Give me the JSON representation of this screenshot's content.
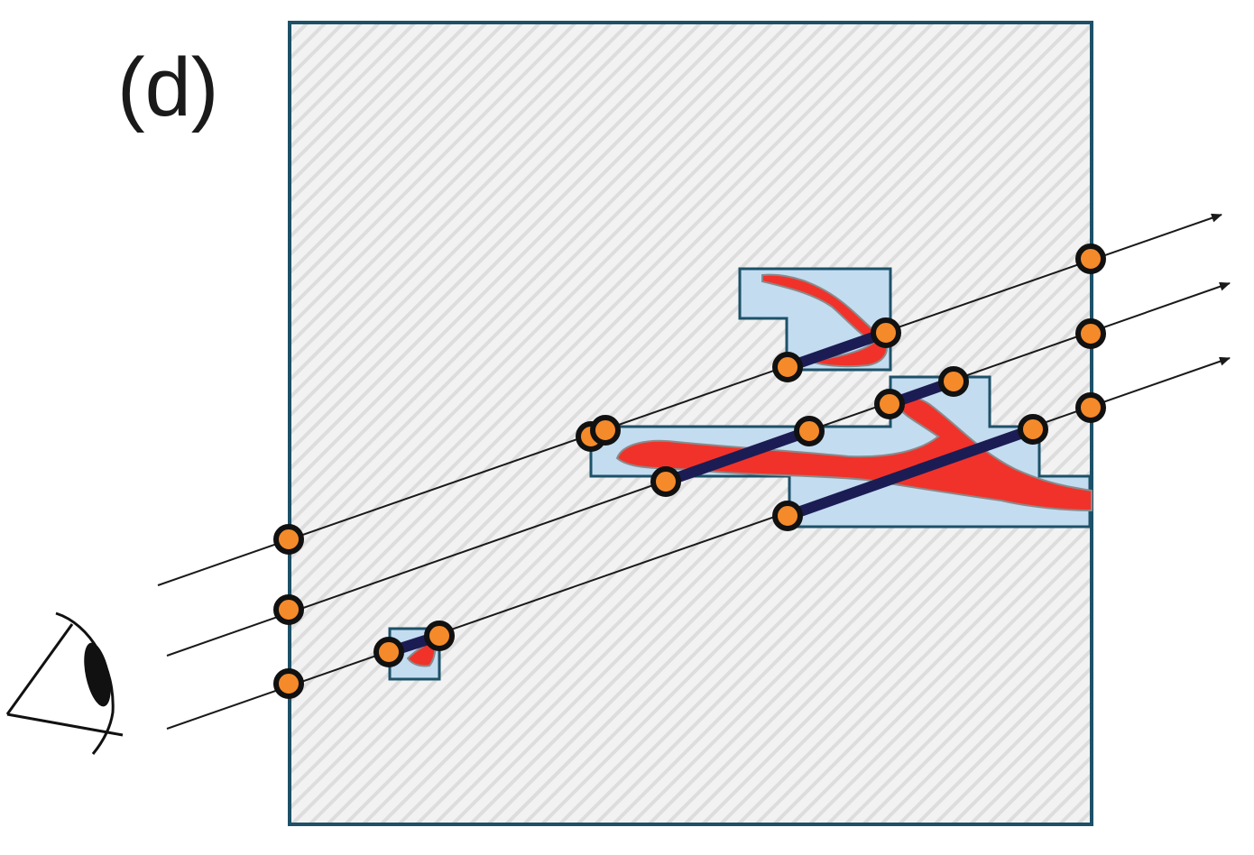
{
  "panel_label": "(d)",
  "colors": {
    "volume_border": "#1d5168",
    "hatch_background": "#f2f2f2",
    "hatch_lines": "#dddddd",
    "block_fill": "#c3dcf0",
    "vessel_fill": "#f1322a",
    "sample_segment": "#1c1c54",
    "sample_point": "#f58a2a",
    "ray_line": "#1a1a1a"
  },
  "icons": {
    "viewer": "eye-icon",
    "ray_heads": "arrowhead-icon"
  },
  "rays": [
    "ray-top",
    "ray-middle",
    "ray-bottom"
  ]
}
